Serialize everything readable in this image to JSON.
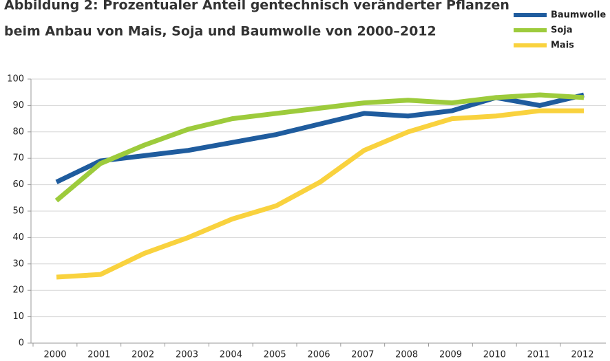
{
  "chart_data": {
    "type": "line",
    "title": "Abbildung 2: Prozentualer Anteil gentechnisch veränderter Pflanzen",
    "subtitle": "beim Anbau von Mais, Soja und Baumwolle von 2000–2012",
    "categories": [
      "2000",
      "2001",
      "2002",
      "2003",
      "2004",
      "2005",
      "2006",
      "2007",
      "2008",
      "2009",
      "2010",
      "2011",
      "2012"
    ],
    "series": [
      {
        "name": "Baumwolle",
        "color": "#1f5c9e",
        "values": [
          61,
          69,
          71,
          73,
          76,
          79,
          83,
          87,
          86,
          88,
          93,
          90,
          94
        ]
      },
      {
        "name": "Soja",
        "color": "#9dcb3c",
        "values": [
          54,
          68,
          75,
          81,
          85,
          87,
          89,
          91,
          92,
          91,
          93,
          94,
          93
        ]
      },
      {
        "name": "Mais",
        "color": "#f9d23e",
        "values": [
          25,
          26,
          34,
          40,
          47,
          52,
          61,
          73,
          80,
          85,
          86,
          88,
          88
        ]
      }
    ],
    "ylim": [
      0,
      100
    ],
    "yticks": [
      0,
      10,
      20,
      30,
      40,
      50,
      60,
      70,
      80,
      90,
      100
    ],
    "grid": true,
    "legend": "top-right"
  }
}
